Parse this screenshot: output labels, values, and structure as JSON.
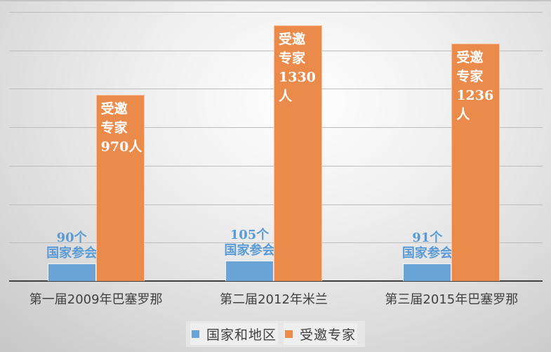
{
  "chart_data": {
    "type": "bar",
    "title": "",
    "xlabel": "",
    "ylabel": "",
    "ylim": [
      0,
      1400
    ],
    "grid": true,
    "grid_step": 200,
    "legend_position": "bottom",
    "categories": [
      "第一届2009年巴塞罗那",
      "第二届2012年米兰",
      "第三届2015年巴塞罗那"
    ],
    "series": [
      {
        "name": "国家和地区",
        "color": "#6aa3d6",
        "values": [
          90,
          105,
          91
        ],
        "labels": [
          "90个\n国家参会",
          "105个\n国家参会",
          "91个\n国家参会"
        ]
      },
      {
        "name": "受邀专家",
        "color": "#ea8b4b",
        "values": [
          970,
          1330,
          1236
        ],
        "labels": [
          "受邀\n专家\n970人",
          "受邀\n专家\n1330人",
          "受邀\n专家\n1236人"
        ]
      }
    ]
  },
  "legend": {
    "items": [
      {
        "label": "国家和地区",
        "color": "#6aa3d6"
      },
      {
        "label": "受邀专家",
        "color": "#ea8b4b"
      }
    ]
  }
}
